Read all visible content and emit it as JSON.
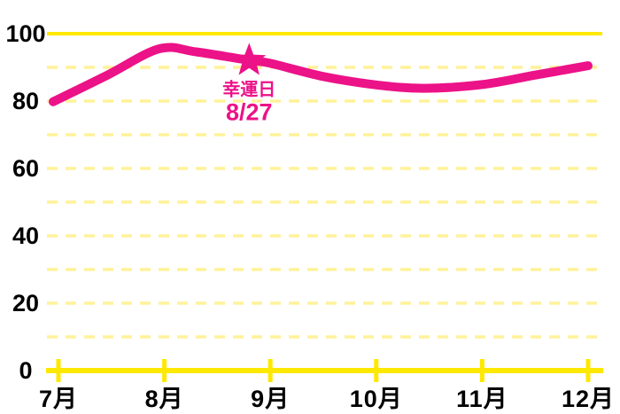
{
  "chart_data": {
    "type": "line",
    "title": "",
    "xlabel": "",
    "ylabel": "",
    "x_tick_labels": [
      "7月",
      "8月",
      "9月",
      "10月",
      "11月",
      "12月"
    ],
    "x_tick_months": [
      7,
      8,
      9,
      10,
      11,
      12
    ],
    "y_tick_labels": [
      "0",
      "20",
      "40",
      "60",
      "80",
      "100"
    ],
    "y_tick_values": [
      0,
      20,
      40,
      60,
      80,
      100
    ],
    "ylim": [
      0,
      100
    ],
    "grid": {
      "dashed_values": [
        10,
        20,
        30,
        40,
        50,
        60,
        70,
        80,
        90
      ],
      "solid_values": [
        100
      ],
      "orientation": "horizontal"
    },
    "legend": null,
    "series": [
      {
        "points": [
          [
            6.95,
            79.8
          ],
          [
            7.45,
            87.5
          ],
          [
            7.95,
            95.5
          ],
          [
            8.3,
            94.6
          ],
          [
            8.8,
            92.1
          ],
          [
            9.0,
            91.2
          ],
          [
            9.5,
            87.3
          ],
          [
            10.0,
            84.8
          ],
          [
            10.45,
            83.8
          ],
          [
            11.0,
            84.9
          ],
          [
            11.5,
            87.7
          ],
          [
            12.0,
            90.5
          ]
        ]
      }
    ],
    "annotation": {
      "marker": "star",
      "label": "幸運日",
      "date": "8/27",
      "month_position": 8.8,
      "value": 92
    },
    "colors": {
      "line": "#EC1288",
      "annotation": "#EC1288",
      "grid_solid": "#FFE800",
      "grid_dashed": "#FFF299",
      "axis": "#FFE800",
      "text": "#000000",
      "background": "#FFFFFF"
    }
  }
}
